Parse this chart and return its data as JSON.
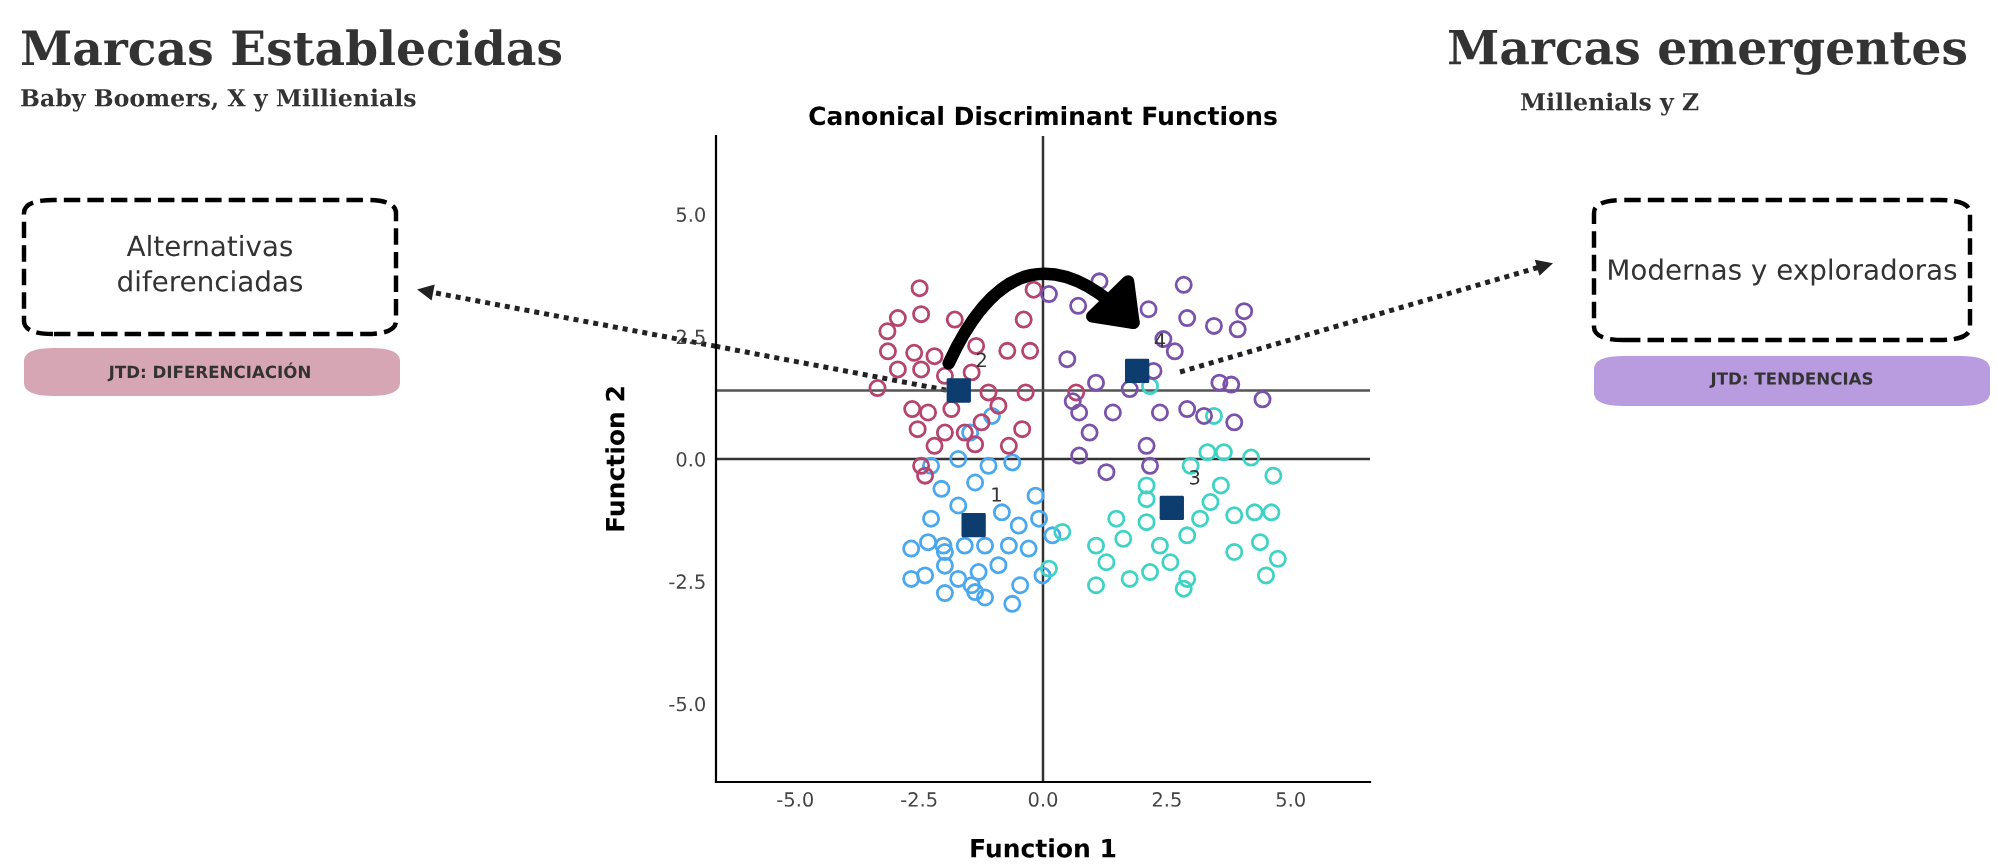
{
  "chart_data": {
    "type": "scatter",
    "title": "Canonical Discriminant Functions",
    "xlabel": "Function 1",
    "ylabel": "Function 2",
    "xlim": [
      -6.6,
      6.6
    ],
    "ylim": [
      -6.6,
      6.6
    ],
    "xticks": [
      {
        "value": -5,
        "label": "-5.0"
      },
      {
        "value": -2.5,
        "label": "-2.5"
      },
      {
        "value": 0,
        "label": "0.0"
      },
      {
        "value": 2.5,
        "label": "2.5"
      },
      {
        "value": 5,
        "label": "5.0"
      }
    ],
    "yticks": [
      {
        "value": -5,
        "label": "-5.0"
      },
      {
        "value": -2.5,
        "label": "-2.5"
      },
      {
        "value": 0,
        "label": "0.0"
      },
      {
        "value": 2.5,
        "label": "2.5"
      },
      {
        "value": 5,
        "label": "5.0"
      }
    ],
    "grid": false,
    "legend": false,
    "ref_lines": [
      {
        "axis": "x",
        "value": 0,
        "color": "#333333"
      },
      {
        "axis": "y",
        "value": 0,
        "color": "#333333"
      },
      {
        "axis": "y",
        "value": 1.4,
        "color": "#555555"
      }
    ],
    "series": [
      {
        "marker": "circle",
        "color": "#4aa8ee",
        "x": [
          -2.26,
          -1.71,
          -1.1,
          -0.62,
          -1.37,
          -2.05,
          -1.71,
          -2.26,
          -0.15,
          -0.83,
          -0.49,
          -0.08,
          0.19,
          -2.32,
          -2.66,
          -1.98,
          -1.58,
          -1.17,
          -0.69,
          -0.29,
          -2.66,
          -2.38,
          -1.98,
          -1.71,
          -1.3,
          -0.9,
          -1.98,
          -1.37,
          -1.17,
          -0.62,
          -0.46,
          -0.01,
          -1.44,
          -2.01,
          -1.47,
          -1.03
        ],
        "values": [
          -0.14,
          0,
          -0.14,
          -0.07,
          -0.48,
          -0.61,
          -0.95,
          -1.22,
          -0.75,
          -1.09,
          -1.36,
          -1.22,
          -1.56,
          -1.7,
          -1.83,
          -1.9,
          -1.77,
          -1.77,
          -1.77,
          -1.83,
          -2.45,
          -2.38,
          -2.18,
          -2.45,
          -2.31,
          -2.17,
          -2.74,
          -2.72,
          -2.83,
          -2.96,
          -2.58,
          -2.38,
          -2.58,
          -1.77,
          0.54,
          0.88
        ]
      },
      {
        "marker": "circle",
        "color": "#b5446e",
        "x": [
          -2.49,
          -3.34,
          -3.14,
          -2.93,
          -2.46,
          -3.13,
          -2.93,
          -2.6,
          -2.19,
          -1.78,
          -1.35,
          -0.72,
          -0.26,
          -0.39,
          -0.19,
          -2.64,
          -2.32,
          -1.85,
          -1.24,
          -0.9,
          -2.53,
          -2.19,
          -1.98,
          -1.58,
          -0.35,
          -0.69,
          -2.46,
          -2.38,
          -1.37,
          -1.1,
          -1.98,
          -1.44,
          0.67,
          -0.42,
          -2.46
        ],
        "values": [
          3.49,
          1.45,
          2.61,
          2.88,
          2.96,
          2.2,
          1.83,
          2.17,
          2.1,
          2.85,
          2.31,
          2.21,
          2.21,
          2.85,
          3.46,
          1.02,
          0.95,
          1.02,
          0.75,
          1.09,
          0.61,
          0.27,
          0.54,
          0.54,
          1.36,
          0.27,
          -0.14,
          -0.34,
          0.3,
          1.36,
          1.7,
          1.77,
          1.36,
          0.61,
          1.83
        ]
      },
      {
        "marker": "circle",
        "color": "#3fd3c6",
        "x": [
          3.32,
          3.65,
          4.2,
          4.65,
          2.98,
          2.09,
          3.59,
          3.38,
          1.48,
          2.09,
          3.17,
          3.86,
          4.27,
          4.61,
          1.07,
          1.62,
          2.36,
          2.91,
          3.86,
          4.38,
          4.74,
          1.28,
          2.16,
          2.57,
          2.91,
          1.75,
          1.07,
          2.84,
          4.5,
          0.12,
          0.39,
          2.09,
          2.16,
          3.45
        ],
        "values": [
          0.14,
          0.14,
          0.03,
          -0.34,
          -0.14,
          -0.54,
          -0.54,
          -0.88,
          -1.22,
          -1.29,
          -1.22,
          -1.15,
          -1.09,
          -1.09,
          -1.77,
          -1.63,
          -1.77,
          -1.56,
          -1.9,
          -1.7,
          -2.04,
          -2.11,
          -2.31,
          -2.11,
          -2.45,
          -2.45,
          -2.58,
          -2.65,
          -2.38,
          -2.24,
          -1.49,
          -0.82,
          1.49,
          0.88
        ]
      },
      {
        "marker": "circle",
        "color": "#7b52ab",
        "x": [
          0.12,
          1.14,
          2.84,
          0.71,
          2.13,
          2.91,
          4.06,
          3.45,
          3.93,
          2.43,
          2.66,
          0.49,
          1.07,
          0.73,
          1.41,
          2.36,
          2.91,
          3.56,
          3.8,
          4.43,
          3.86,
          3.25,
          0.94,
          2.09,
          1.28,
          2.16,
          0.73,
          1.75,
          0.6,
          2.23
        ],
        "values": [
          3.37,
          3.63,
          3.56,
          3.13,
          3.06,
          2.88,
          3.02,
          2.72,
          2.65,
          2.45,
          2.2,
          2.04,
          1.56,
          0.95,
          0.95,
          0.95,
          1.02,
          1.56,
          1.52,
          1.22,
          0.75,
          0.88,
          0.54,
          0.27,
          -0.27,
          -0.14,
          0.07,
          1.43,
          1.18,
          1.8
        ]
      },
      {
        "marker": "square",
        "color": "#0d3c6e",
        "x": [
          -1.4,
          -1.7,
          2.6,
          1.9
        ],
        "values": [
          -1.35,
          1.4,
          -1.0,
          1.8
        ]
      }
    ],
    "annotations": [
      {
        "text": "1",
        "x": -1.4,
        "y": -1.35
      },
      {
        "text": "2",
        "x": -1.7,
        "y": 1.4
      },
      {
        "text": "3",
        "x": 2.6,
        "y": -1.0
      },
      {
        "text": "4",
        "x": 1.9,
        "y": 1.8
      },
      "Marcas Establecidas",
      "Baby Boomers, X y Millienials",
      "Alternativas\ndiferenciadas",
      "JTD: DIFERENCIACIÓN",
      "Marcas emergentes",
      "Millenials y Z",
      "Modernas y exploradoras",
      "JTD: TENDENCIAS"
    ]
  }
}
